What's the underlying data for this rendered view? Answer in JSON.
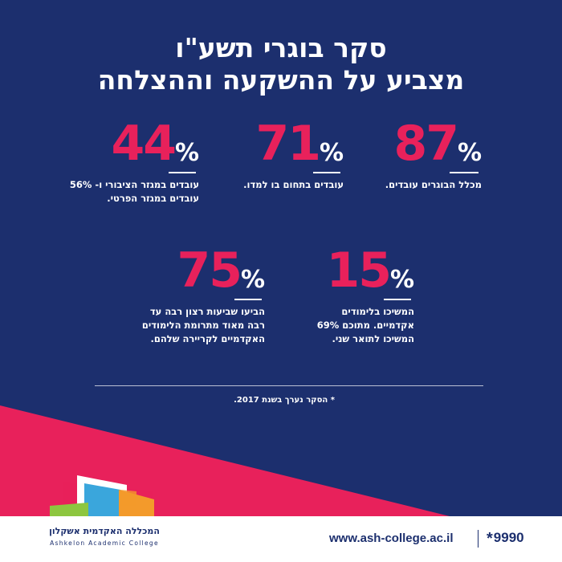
{
  "title": {
    "line1": "סקר בוגרי תשע\"ו",
    "line2": "מצביע על ההשקעה וההצלחה"
  },
  "stats": [
    {
      "value": "87",
      "unit": "%",
      "desc": [
        "מכלל הבוגרים עובדים."
      ]
    },
    {
      "value": "71",
      "unit": "%",
      "desc": [
        "עובדים בתחום בו למדו."
      ]
    },
    {
      "value": "44",
      "unit": "%",
      "desc": [
        "עובדים במגזר הציבורי ו- 56%",
        "עובדים במגזר הפרטי."
      ]
    },
    {
      "value": "15",
      "unit": "%",
      "desc": [
        "המשיכו בלימודים",
        "אקדמיים. מתוכם 69%",
        "המשיכו לתואר שני."
      ]
    },
    {
      "value": "75",
      "unit": "%",
      "desc": [
        "הביעו שביעות רצון רבה עד",
        "רבה מאוד מתרומת הלימודים",
        "האקדמיים לקריירה שלהם."
      ]
    }
  ],
  "footnote": "* הסקר נערך בשנת 2017.",
  "footer": {
    "url": "www.ash-college.ac.il",
    "phone": "9990",
    "logo_he": "המכללה האקדמית אשקלון",
    "logo_en": "Ashkelon Academic College"
  },
  "colors": {
    "background": "#1c2f6e",
    "accent": "#e8215b",
    "text": "#ffffff"
  }
}
